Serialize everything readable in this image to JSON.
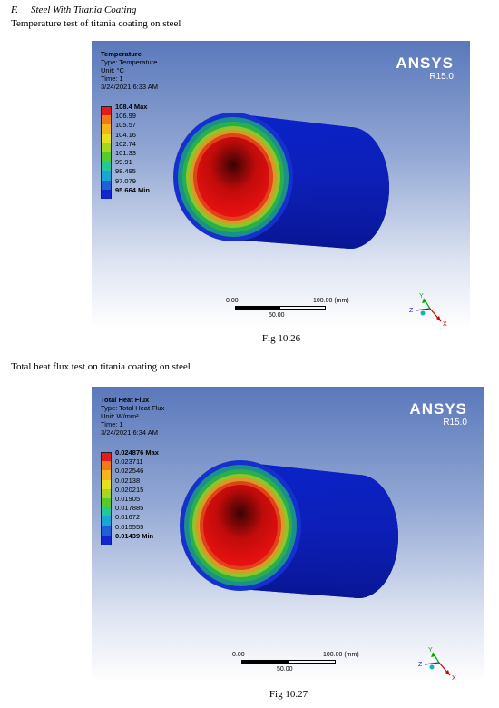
{
  "document": {
    "section_number": "F.",
    "section_title": "Steel With Titania Coating",
    "intro1": "Temperature test of titania coating on steel",
    "intro2": "Total heat flux test on titania coating on steel"
  },
  "figures": [
    {
      "caption": "Fig 10.26",
      "result_title": "Temperature",
      "type": "Type: Temperature",
      "unit": "Unit: °C",
      "time": "Time: 1",
      "date": "3/24/2021 6:33 AM",
      "legend_max": "108.4 Max",
      "legend_values": [
        "106.99",
        "105.57",
        "104.16",
        "102.74",
        "101.33",
        "99.91",
        "98.495",
        "97.079"
      ],
      "legend_min": "95.664 Min",
      "brand": "ANSYS",
      "version": "R15.0",
      "scale_start": "0.00",
      "scale_end": "100.00 (mm)",
      "scale_mid": "50.00",
      "axis_x": "X",
      "axis_y": "Y",
      "axis_z": "Z"
    },
    {
      "caption": "Fig 10.27",
      "result_title": "Total Heat Flux",
      "type": "Type: Total Heat Flux",
      "unit": "Unit: W/mm²",
      "time": "Time: 1",
      "date": "3/24/2021 6:34 AM",
      "legend_max": "0.024876 Max",
      "legend_values": [
        "0.023711",
        "0.022546",
        "0.02138",
        "0.020215",
        "0.01905",
        "0.017885",
        "0.01672",
        "0.015555"
      ],
      "legend_min": "0.01439 Min",
      "brand": "ANSYS",
      "version": "R15.0",
      "scale_start": "0.00",
      "scale_end": "100.00 (mm)",
      "scale_mid": "50.00",
      "axis_x": "X",
      "axis_y": "Y",
      "axis_z": "Z"
    }
  ],
  "legend_colors": [
    "#e41a1c",
    "#f07a15",
    "#f5b51a",
    "#e7e01c",
    "#a8d61e",
    "#53cc2c",
    "#1ec99a",
    "#19a5d6",
    "#1f5fd8",
    "#1226cc"
  ]
}
